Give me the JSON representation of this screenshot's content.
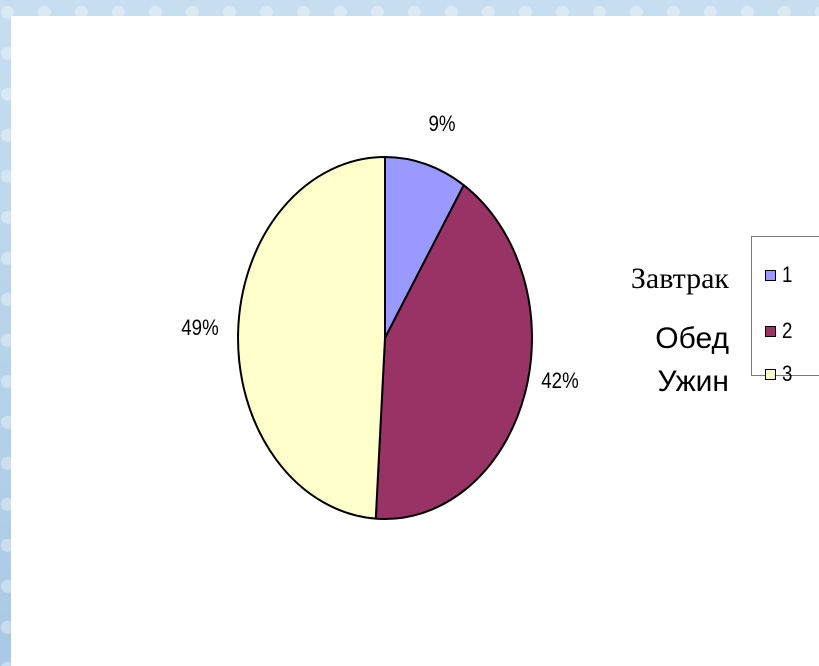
{
  "chart_data": {
    "type": "pie",
    "categories": [
      "1",
      "2",
      "3"
    ],
    "values": [
      9,
      42,
      49
    ],
    "data_labels": [
      "9%",
      "42%",
      "49%"
    ],
    "colors": [
      "#9999ff",
      "#993366",
      "#ffffcc"
    ],
    "start_angle_deg": 0,
    "direction": "clockwise",
    "legend": {
      "placement": "right",
      "entries": [
        "1",
        "2",
        "3"
      ]
    }
  },
  "category_names": [
    "Завтрак",
    "Обед",
    "Ужин"
  ],
  "background": "#b9d5ea",
  "outline_color": "#000000"
}
